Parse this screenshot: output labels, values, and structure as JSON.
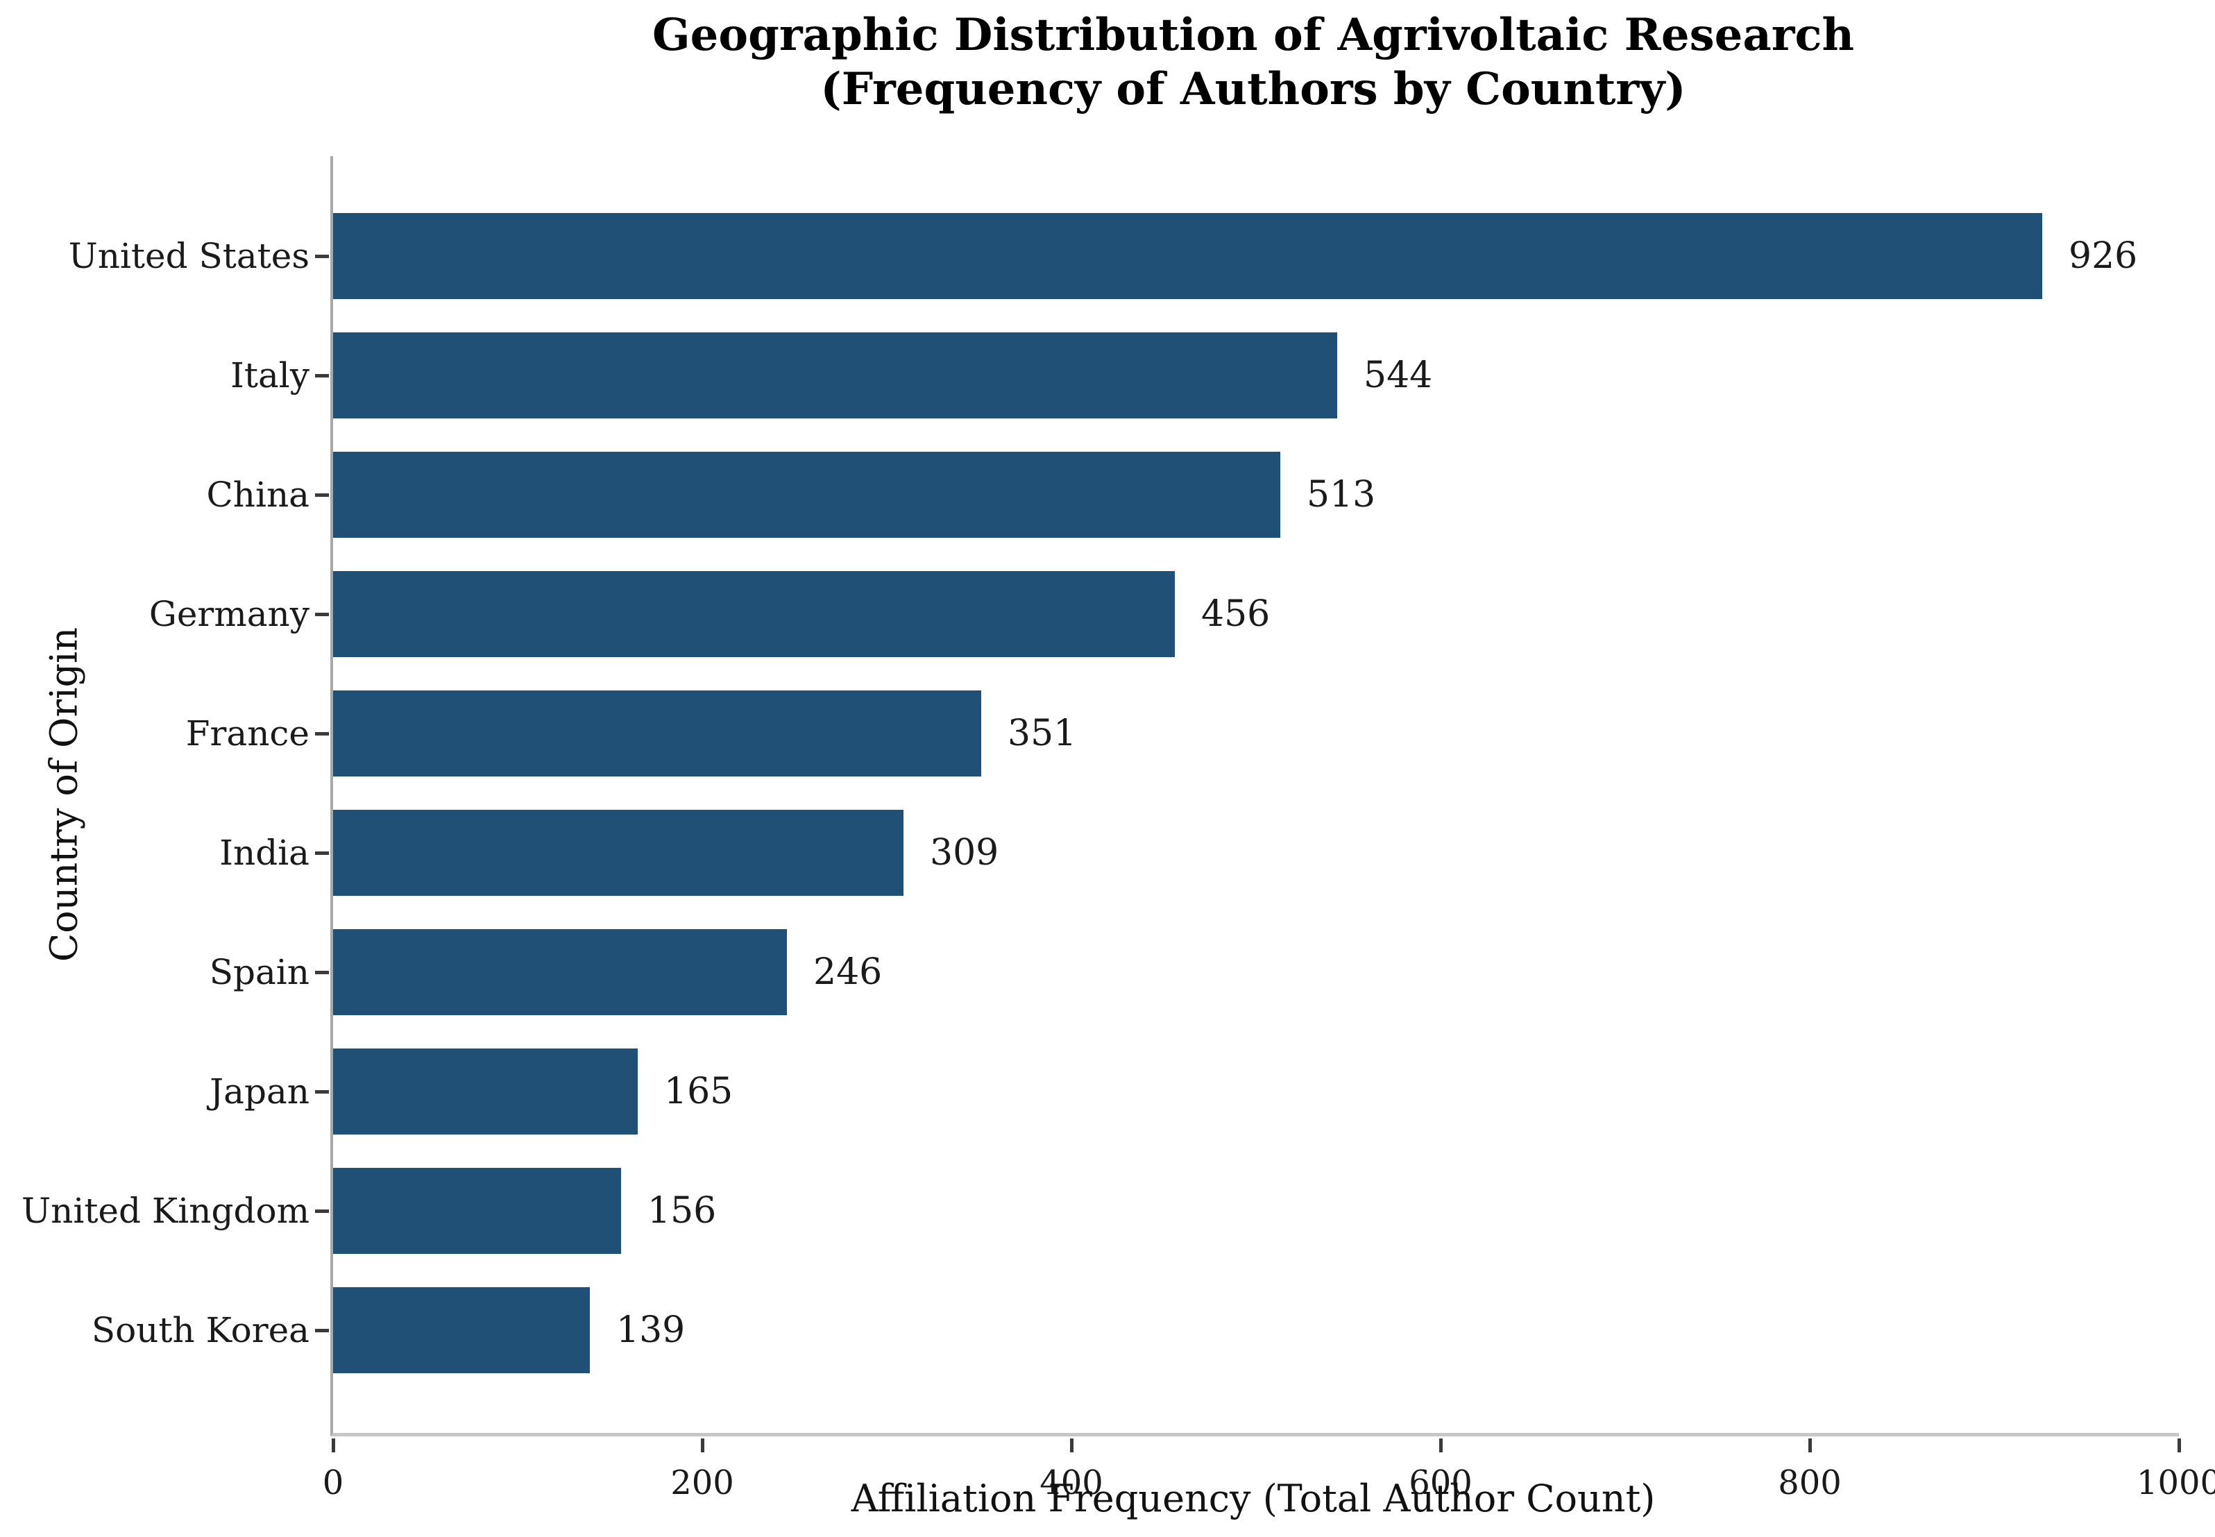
{
  "chart_data": {
    "type": "bar",
    "orientation": "horizontal",
    "title_line1": "Geographic Distribution of Agrivoltaic Research",
    "title_line2": "(Frequency of Authors by Country)",
    "categories": [
      "United States",
      "Italy",
      "China",
      "Germany",
      "France",
      "India",
      "Spain",
      "Japan",
      "United Kingdom",
      "South Korea"
    ],
    "values": [
      926,
      544,
      513,
      456,
      351,
      309,
      246,
      165,
      156,
      139
    ],
    "xlabel": "Affiliation Frequency (Total Author Count)",
    "ylabel": "Country of Origin",
    "xlim": [
      0,
      1000
    ],
    "x_ticks": [
      0,
      200,
      400,
      600,
      800,
      1000
    ],
    "bar_color": "#215077",
    "grid": false,
    "legend_position": "none",
    "value_labels_shown": true
  }
}
